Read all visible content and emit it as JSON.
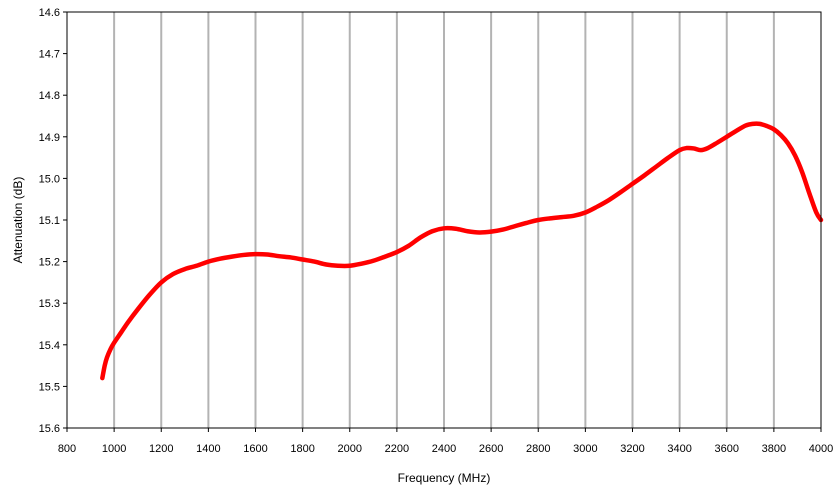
{
  "chart_data": {
    "type": "line",
    "title": "",
    "xlabel": "Frequency (MHz)",
    "ylabel": "Attenuation (dB)",
    "xlim": [
      800,
      4000
    ],
    "ylim": [
      15.6,
      14.6
    ],
    "y_axis_inverted": true,
    "grid": "vertical",
    "x_ticks": [
      800,
      1000,
      1200,
      1400,
      1600,
      1800,
      2000,
      2200,
      2400,
      2600,
      2800,
      3000,
      3200,
      3400,
      3600,
      3800,
      4000
    ],
    "y_ticks": [
      "14.6",
      "14.7",
      "14.8",
      "14.9",
      "15.0",
      "15.1",
      "15.2",
      "15.3",
      "15.4",
      "15.5",
      "15.6"
    ],
    "series": [
      {
        "color": "#ff0000",
        "x": [
          950,
          960,
          970,
          985,
          1000,
          1030,
          1060,
          1100,
          1150,
          1200,
          1250,
          1300,
          1350,
          1400,
          1450,
          1500,
          1550,
          1600,
          1650,
          1700,
          1750,
          1800,
          1850,
          1900,
          1950,
          2000,
          2050,
          2100,
          2150,
          2200,
          2250,
          2300,
          2350,
          2400,
          2450,
          2500,
          2550,
          2600,
          2650,
          2700,
          2750,
          2800,
          2850,
          2900,
          2950,
          3000,
          3050,
          3100,
          3150,
          3200,
          3250,
          3300,
          3350,
          3400,
          3430,
          3460,
          3490,
          3520,
          3560,
          3600,
          3640,
          3680,
          3710,
          3740,
          3770,
          3800,
          3830,
          3860,
          3890,
          3920,
          3950,
          3980,
          4000
        ],
        "y": [
          15.48,
          15.45,
          15.43,
          15.41,
          15.395,
          15.37,
          15.345,
          15.315,
          15.28,
          15.25,
          15.23,
          15.218,
          15.21,
          15.2,
          15.193,
          15.188,
          15.184,
          15.182,
          15.183,
          15.187,
          15.19,
          15.195,
          15.2,
          15.207,
          15.21,
          15.21,
          15.205,
          15.198,
          15.188,
          15.177,
          15.162,
          15.142,
          15.127,
          15.12,
          15.121,
          15.127,
          15.13,
          15.128,
          15.123,
          15.115,
          15.107,
          15.1,
          15.096,
          15.093,
          15.09,
          15.082,
          15.068,
          15.052,
          15.033,
          15.013,
          14.993,
          14.972,
          14.951,
          14.932,
          14.927,
          14.928,
          14.932,
          14.927,
          14.914,
          14.9,
          14.886,
          14.873,
          14.869,
          14.869,
          14.874,
          14.882,
          14.896,
          14.916,
          14.945,
          14.985,
          15.035,
          15.082,
          15.1
        ]
      }
    ]
  }
}
